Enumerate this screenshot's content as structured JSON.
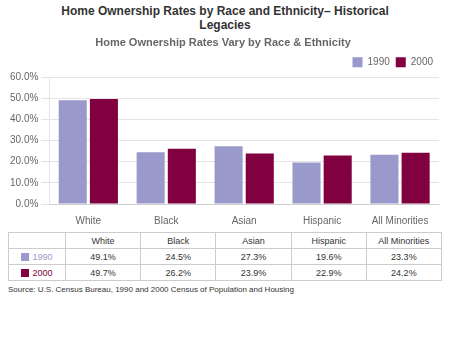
{
  "chart_data": {
    "type": "bar",
    "title": "Home Ownership Rates by Race and Ethnicity– Historical\nLegacies",
    "subtitle": "Home Ownership Rates Vary by Race & Ethnicity",
    "categories": [
      "White",
      "Black",
      "Asian",
      "Hispanic",
      "All Minorities"
    ],
    "series": [
      {
        "name": "1990",
        "color": "#9999CC",
        "values": [
          49.1,
          24.5,
          27.3,
          19.6,
          23.3
        ],
        "value_labels": [
          "49.1%",
          "24.5%",
          "27.3%",
          "19.6%",
          "23.3%"
        ]
      },
      {
        "name": "2000",
        "color": "#800040",
        "values": [
          49.7,
          26.2,
          23.9,
          22.9,
          24.2
        ],
        "value_labels": [
          "49.7%",
          "26.2%",
          "23.9%",
          "22.9%",
          "24.2%"
        ]
      }
    ],
    "ylim": [
      0,
      60
    ],
    "yticks": [
      {
        "value": 0,
        "label": "0.0%"
      },
      {
        "value": 10,
        "label": "10.0%"
      },
      {
        "value": 20,
        "label": "20.0%"
      },
      {
        "value": 30,
        "label": "30.0%"
      },
      {
        "value": 40,
        "label": "40.0%"
      },
      {
        "value": 50,
        "label": "50.0%"
      },
      {
        "value": 60,
        "label": "60.0%"
      }
    ],
    "grid": true,
    "legend": "upper right",
    "annotations": [
      "Source: U.S. Census Bureau, 1990 and 2000 Census of Population and Housing"
    ]
  }
}
